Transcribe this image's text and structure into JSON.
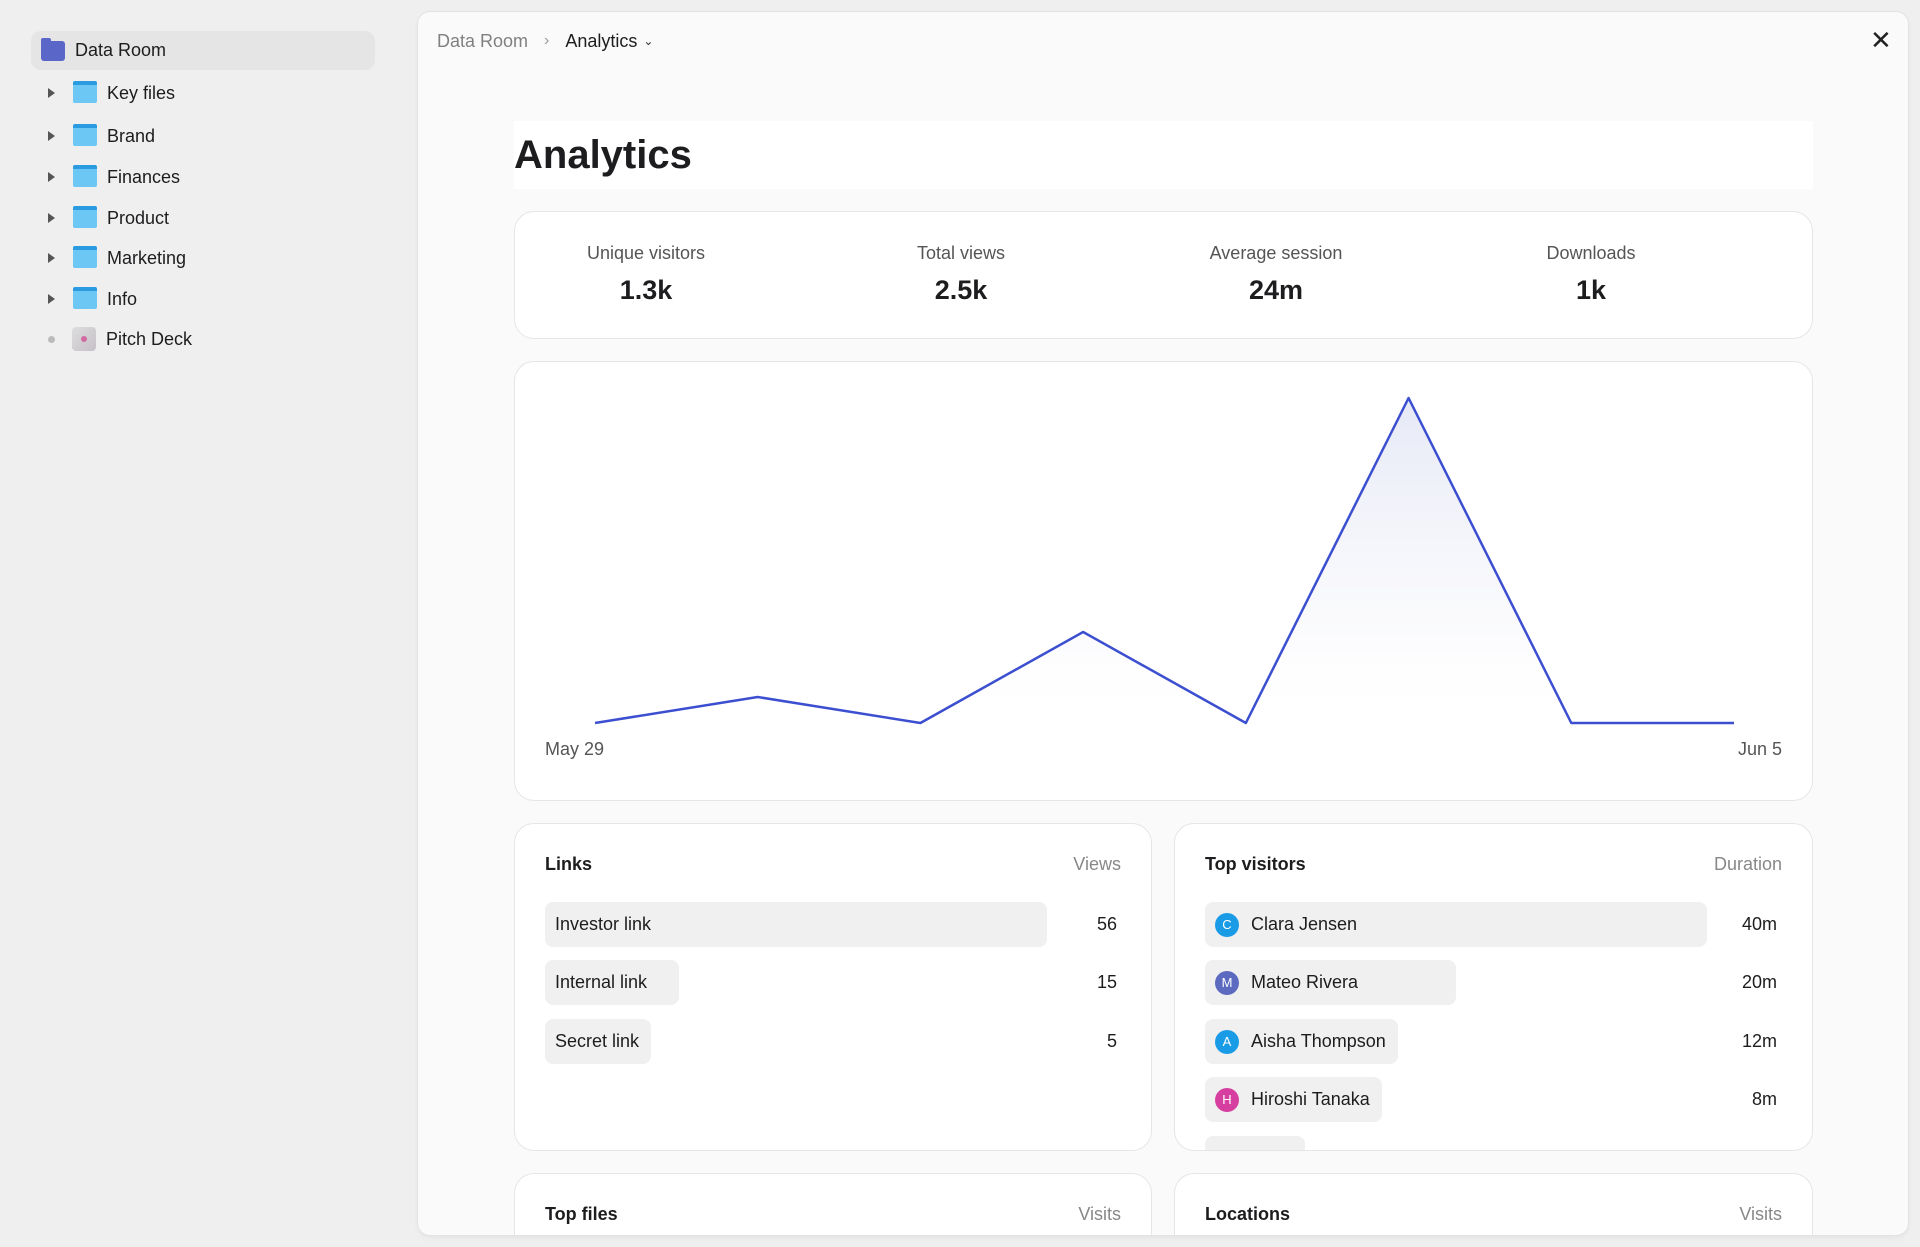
{
  "sidebar": {
    "root": {
      "label": "Data Room",
      "icon": "folder-icon",
      "color": "#5a67c9"
    },
    "items": [
      {
        "label": "Key files",
        "icon": "folder-icon"
      },
      {
        "label": "Brand",
        "icon": "folder-icon"
      },
      {
        "label": "Finances",
        "icon": "folder-icon"
      },
      {
        "label": "Product",
        "icon": "folder-icon"
      },
      {
        "label": "Marketing",
        "icon": "folder-icon"
      },
      {
        "label": "Info",
        "icon": "folder-icon"
      },
      {
        "label": "Pitch Deck",
        "icon": "document-thumbnail-icon"
      }
    ]
  },
  "breadcrumb": {
    "parent": "Data Room",
    "current": "Analytics"
  },
  "page": {
    "title": "Analytics"
  },
  "stats": [
    {
      "label": "Unique visitors",
      "value": "1.3k"
    },
    {
      "label": "Total views",
      "value": "2.5k"
    },
    {
      "label": "Average session",
      "value": "24m"
    },
    {
      "label": "Downloads",
      "value": "1k"
    }
  ],
  "chart_data": {
    "type": "area",
    "x": [
      "May 29",
      "May 30",
      "May 31",
      "Jun 1",
      "Jun 2",
      "Jun 3",
      "Jun 4",
      "Jun 5"
    ],
    "values": [
      0,
      2,
      0,
      7,
      0,
      25,
      0,
      0
    ],
    "x_tick_labels": [
      "May 29",
      "Jun 5"
    ],
    "grid": false,
    "line_color": "#3b4fd0"
  },
  "links": {
    "title": "Links",
    "metric": "Views",
    "rows": [
      {
        "label": "Investor link",
        "value": "56"
      },
      {
        "label": "Internal link",
        "value": "15"
      },
      {
        "label": "Secret link",
        "value": "5"
      }
    ]
  },
  "visitors": {
    "title": "Top visitors",
    "metric": "Duration",
    "rows": [
      {
        "initial": "C",
        "name": "Clara Jensen",
        "value": "40m",
        "color": "#1a9be6"
      },
      {
        "initial": "M",
        "name": "Mateo Rivera",
        "value": "20m",
        "color": "#5c6bc0"
      },
      {
        "initial": "A",
        "name": "Aisha Thompson",
        "value": "12m",
        "color": "#1a9be6"
      },
      {
        "initial": "H",
        "name": "Hiroshi Tanaka",
        "value": "8m",
        "color": "#d63fa0"
      }
    ]
  },
  "top_files": {
    "title": "Top files",
    "metric": "Visits"
  },
  "locations": {
    "title": "Locations",
    "metric": "Visits"
  }
}
